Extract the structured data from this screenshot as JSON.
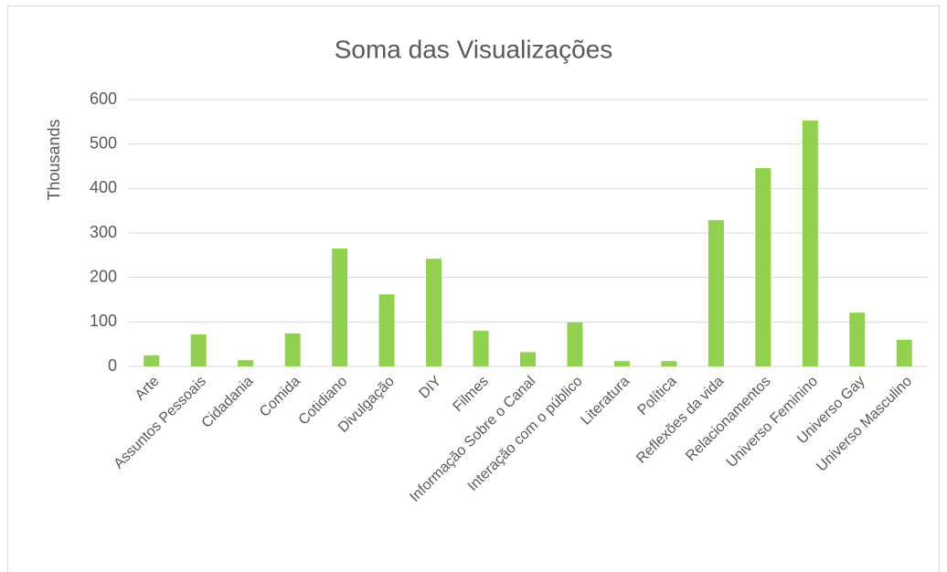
{
  "chart_data": {
    "type": "bar",
    "title": "Soma das Visualizações",
    "y_label": "Thousands",
    "categories": [
      "Arte",
      "Assuntos Pessoais",
      "Cidadania",
      "Comida",
      "Cotidiano",
      "Divulgação",
      "DIY",
      "Filmes",
      "Informação Sobre o Canal",
      "Interação com o público",
      "Literatura",
      "Política",
      "Reflexões da vida",
      "Relacionamentos",
      "Universo Feminino",
      "Universo Gay",
      "Universo Masculino"
    ],
    "values": [
      25,
      72,
      14,
      74,
      265,
      162,
      242,
      80,
      32,
      99,
      12,
      12,
      329,
      446,
      553,
      121,
      60
    ],
    "color": "#92d050",
    "ylim": [
      0,
      600
    ],
    "yticks": [
      0,
      100,
      200,
      300,
      400,
      500,
      600
    ],
    "grid": true
  }
}
